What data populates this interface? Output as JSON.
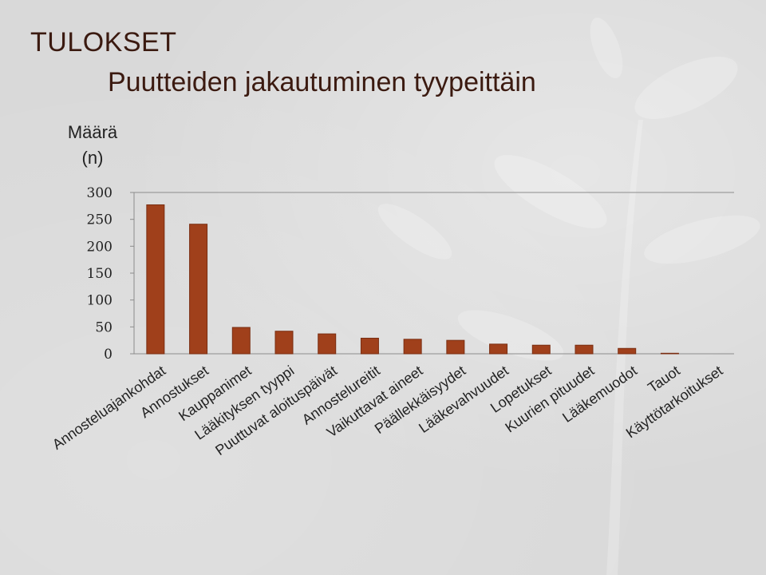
{
  "header": {
    "title": "TULOKSET",
    "subtitle": "Puutteiden jakautuminen tyypeittäin"
  },
  "colors": {
    "bar": "#a0401b",
    "bar_dark": "#7a2e12",
    "title": "#3b1a10",
    "axis": "#8c8c8c",
    "background": "#d9d9d9"
  },
  "chart_data": {
    "type": "bar",
    "ylabel_lines": [
      "Määrä",
      "(n)"
    ],
    "categories": [
      "Annosteluajankohdat",
      "Annostukset",
      "Kauppanimet",
      "Lääkityksen tyyppi",
      "Puuttuvat aloituspäivät",
      "Annostelureitit",
      "Vaikuttavat aineet",
      "Päällekkäisyydet",
      "Lääkevahvuudet",
      "Lopetukset",
      "Kuurien pituudet",
      "Lääkemuodot",
      "Tauot",
      "Käyttötarkoitukset"
    ],
    "values": [
      277,
      241,
      49,
      42,
      37,
      29,
      27,
      25,
      18,
      16,
      16,
      10,
      1,
      0
    ],
    "ylim": [
      0,
      300
    ],
    "yticks": [
      0,
      50,
      100,
      150,
      200,
      250,
      300
    ],
    "grid": false,
    "legend": "none"
  }
}
